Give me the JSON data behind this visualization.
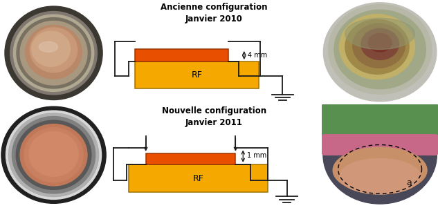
{
  "fig_width": 6.33,
  "fig_height": 3.01,
  "dpi": 100,
  "bg_color": "#ffffff",
  "title1": "Ancienne configuration\nJanvier 2010",
  "title2": "Nouvelle configuration\nJanvier 2011",
  "title_fontsize": 8.5,
  "title_fontweight": "bold",
  "rf_color": "#F5A800",
  "target_color": "#E85000",
  "line_color": "#1a1a1a",
  "rf_label": "RF",
  "rf_label_fontsize": 9,
  "annotation1": "4 mm",
  "annotation2": "1 mm",
  "annot_fontsize": 7,
  "lw": 1.3,
  "photo_tl_bg": "#c8b870",
  "photo_tl_outer": "#3a3830",
  "photo_tl_rim": "#909080",
  "photo_tl_inner_rim": "#b0aa98",
  "photo_tl_copper": "#c09078",
  "photo_tl_light": "#d8b8a0",
  "photo_bl_bg": "#505050",
  "photo_bl_outer": "#282828",
  "photo_bl_rim": "#c8c8c8",
  "photo_bl_inner": "#686868",
  "photo_bl_copper": "#c07858",
  "photo_tr_bg": "#d8d8d0",
  "photo_tr_outer": "#909090",
  "photo_tr_ring1": "#a8b090",
  "photo_tr_ring2": "#b89858",
  "photo_tr_ring3": "#806840",
  "photo_br_bg": "#606060",
  "photo_br_outer": "#404048",
  "photo_br_green": "#609858",
  "photo_br_pink": "#d86890",
  "photo_br_copper": "#c88868",
  "photo_br_dashed": "#202020"
}
